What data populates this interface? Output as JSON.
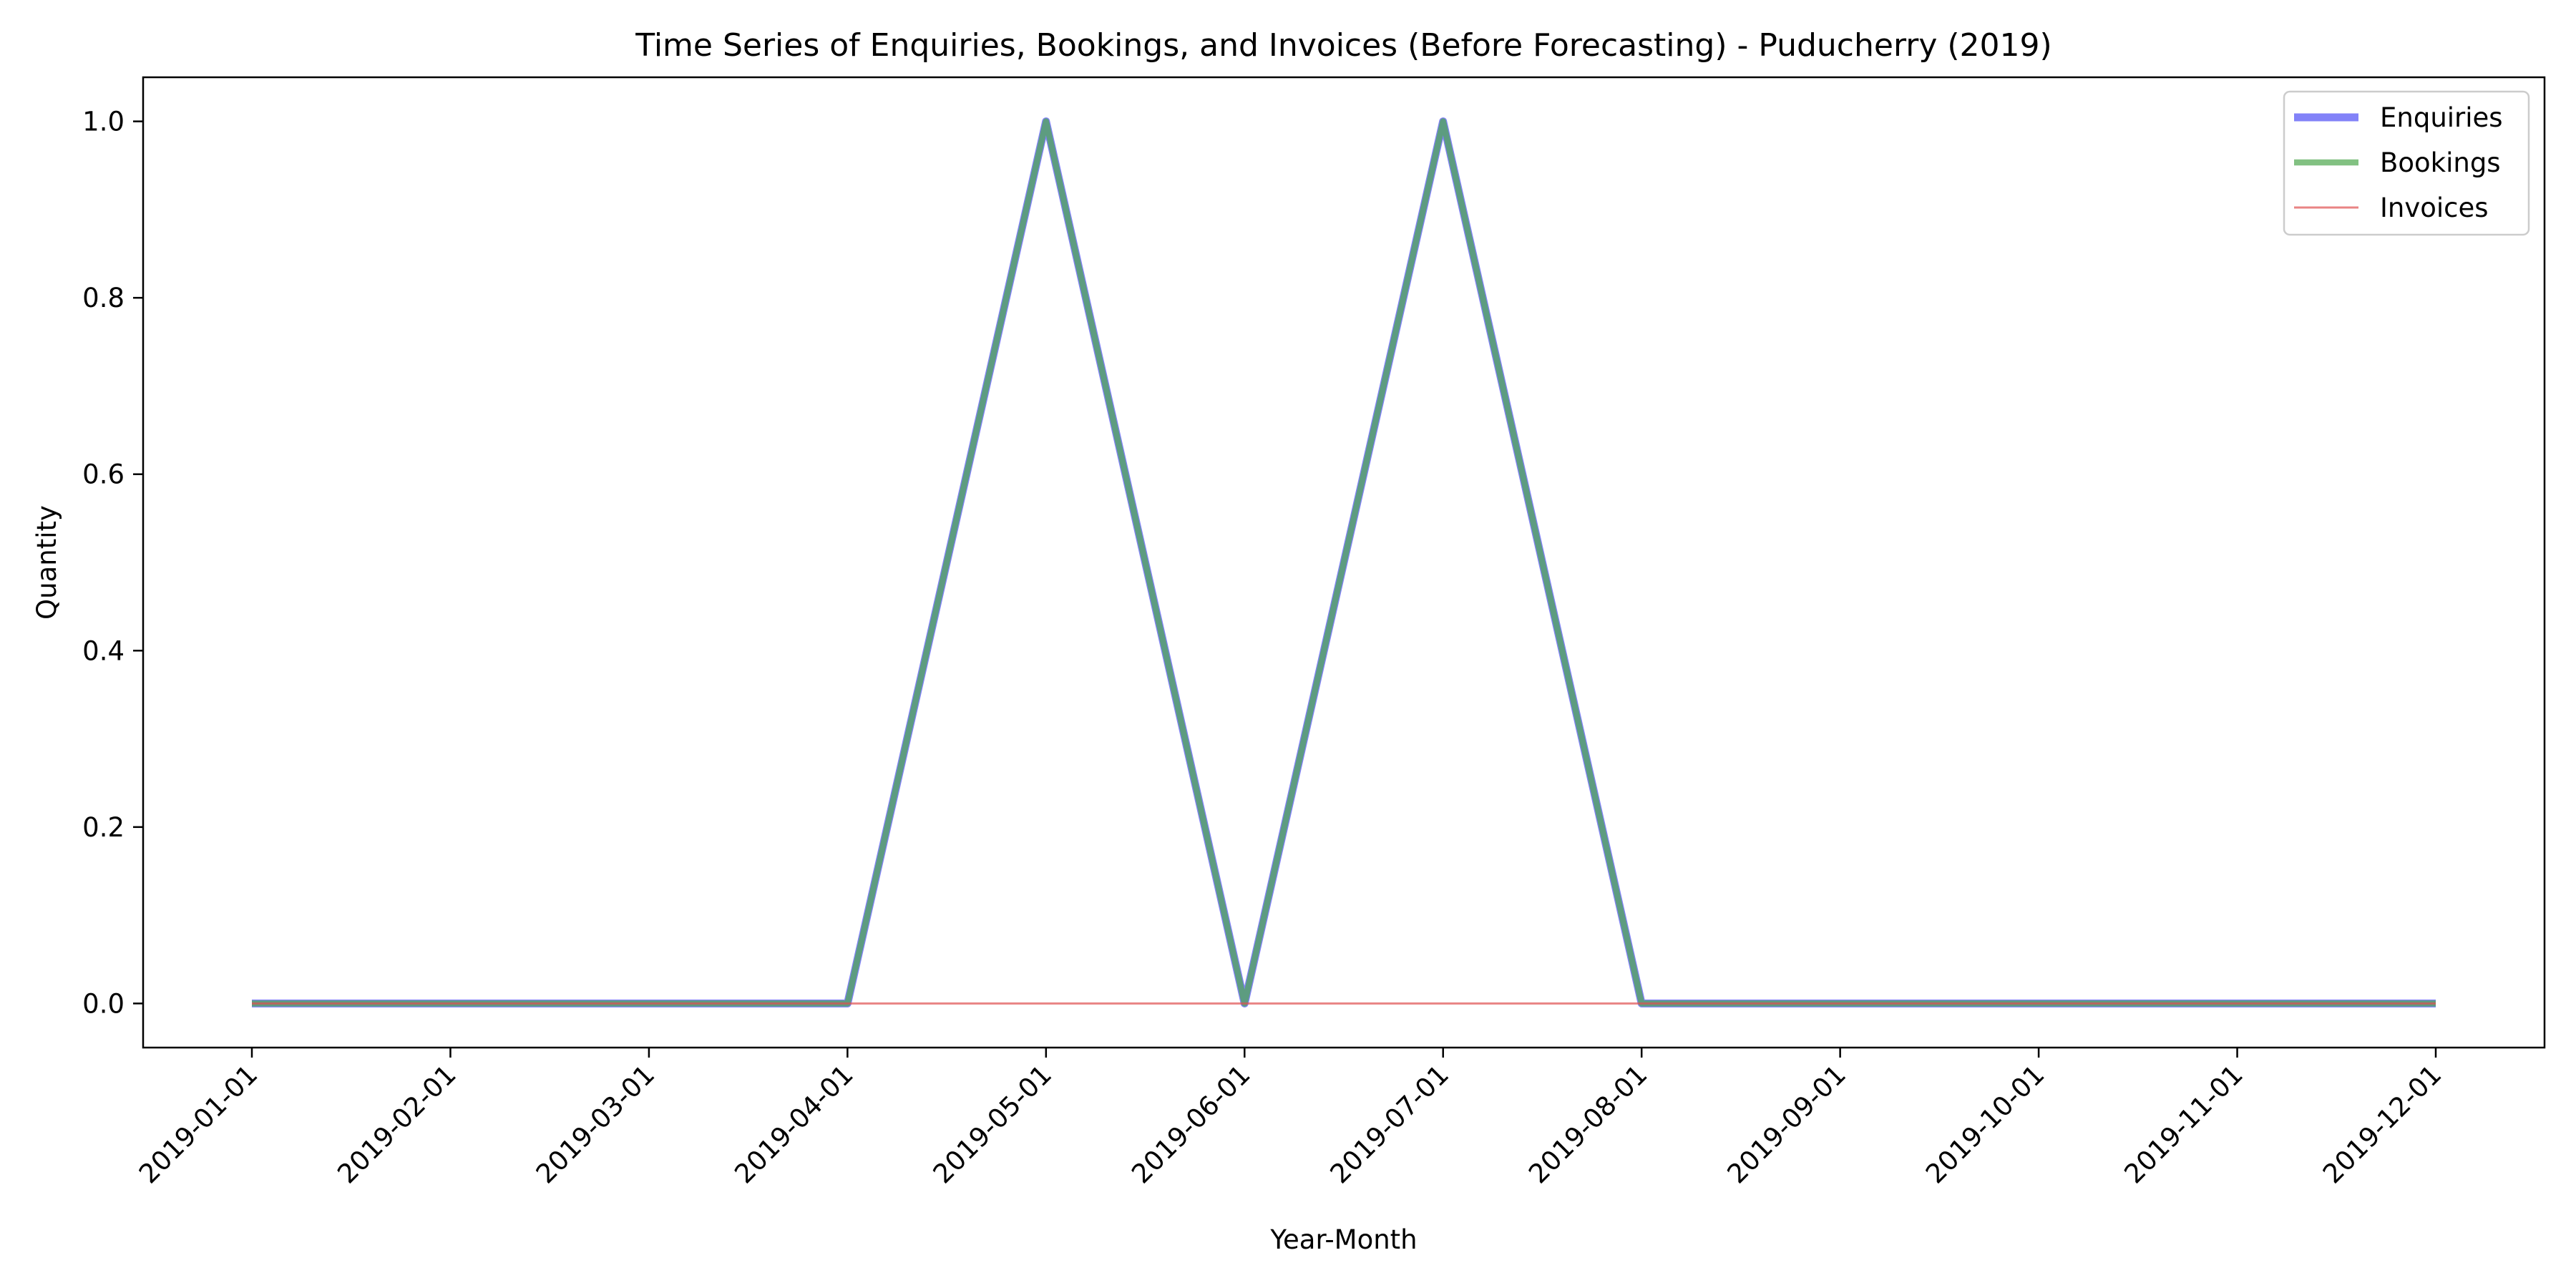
{
  "chart_data": {
    "type": "line",
    "title": "Time Series of Enquiries, Bookings, and Invoices (Before Forecasting) - Puducherry (2019)",
    "xlabel": "Year-Month",
    "ylabel": "Quantity",
    "x": [
      "2019-01-01",
      "2019-02-01",
      "2019-03-01",
      "2019-04-01",
      "2019-05-01",
      "2019-06-01",
      "2019-07-01",
      "2019-08-01",
      "2019-09-01",
      "2019-10-01",
      "2019-11-01",
      "2019-12-01"
    ],
    "ylim": [
      -0.05,
      1.05
    ],
    "yticks": [
      0.0,
      0.2,
      0.4,
      0.6,
      0.8,
      1.0
    ],
    "ytick_labels": [
      "0.0",
      "0.2",
      "0.4",
      "0.6",
      "0.8",
      "1.0"
    ],
    "grid": false,
    "legend_position": "top-right",
    "series": [
      {
        "name": "Enquiries",
        "color": "#4d4df5",
        "values": [
          0,
          0,
          0,
          0,
          1,
          0,
          1,
          0,
          0,
          0,
          0,
          0
        ]
      },
      {
        "name": "Bookings",
        "color": "#4da64d",
        "values": [
          0,
          0,
          0,
          0,
          1,
          0,
          1,
          0,
          0,
          0,
          0,
          0
        ]
      },
      {
        "name": "Invoices",
        "color": "#e05050",
        "values": [
          0,
          0,
          0,
          0,
          0,
          0,
          0,
          0,
          0,
          0,
          0,
          0
        ]
      }
    ],
    "overlap_color": "#235f74"
  }
}
